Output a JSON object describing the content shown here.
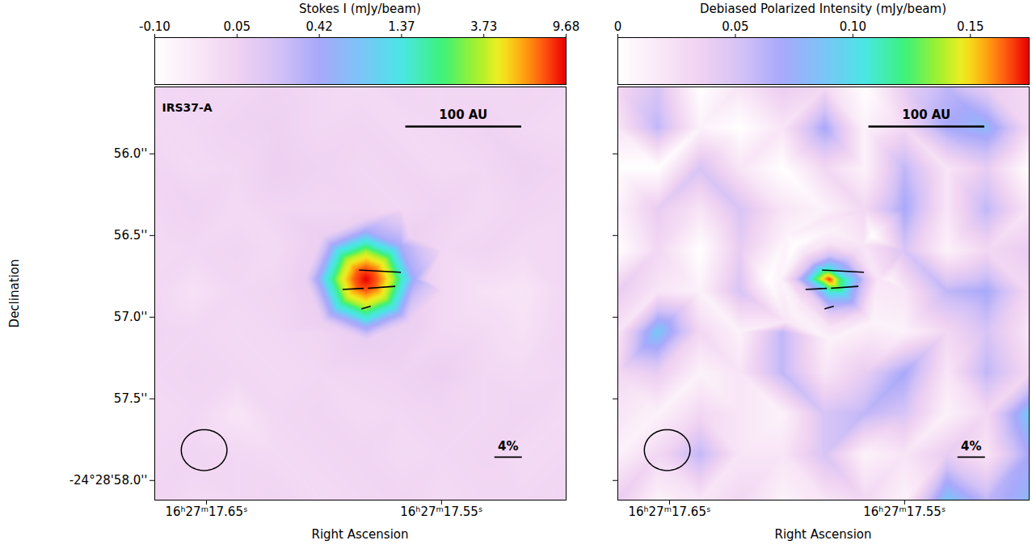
{
  "chart_data": [
    {
      "type": "heatmap",
      "colorbar": {
        "label": "Stokes I (mJy/beam)",
        "range": [
          -0.1,
          9.68
        ],
        "ticks": [
          {
            "value": -0.1,
            "label": "-0.10"
          },
          0.05,
          0.42,
          1.37,
          3.73,
          9.68
        ]
      },
      "annotation": "IRS37-A",
      "x_label": "Right Ascension",
      "y_label": "Declination",
      "xlim": [
        17.672,
        17.497
      ],
      "ylim": [
        55.59,
        58.12
      ],
      "xticks": [
        {
          "value": 17.65,
          "label": "16ʰ27ᵐ17.65ˢ"
        },
        {
          "value": 17.55,
          "label": "16ʰ27ᵐ17.55ˢ"
        }
      ],
      "yticks": [
        {
          "value": 56.0,
          "label": "56.0''"
        },
        {
          "value": 56.5,
          "label": "56.5''"
        },
        {
          "value": 57.0,
          "label": "57.0''"
        },
        {
          "value": 57.5,
          "label": "57.5''"
        },
        {
          "value": 58.0,
          "label": "-24°28'58.0''"
        }
      ],
      "image": {
        "grid_ra": [
          17.672,
          17.655,
          17.637,
          17.62,
          17.602,
          17.584,
          17.567,
          17.55,
          17.532,
          17.515,
          17.497
        ],
        "grid_dec": [
          55.59,
          55.84,
          56.09,
          56.34,
          56.59,
          56.84,
          57.09,
          57.34,
          57.59,
          57.84,
          58.12
        ],
        "grid_values": [
          [
            0.03,
            0.04,
            0.03,
            0.05,
            0.03,
            0.02,
            0.04,
            0.03,
            0.03,
            0.04,
            0.03
          ],
          [
            0.02,
            0.03,
            0.05,
            0.06,
            0.03,
            0.04,
            0.02,
            0.03,
            0.05,
            0.03,
            0.02
          ],
          [
            0.04,
            0.02,
            0.03,
            0.07,
            0.05,
            0.03,
            0.04,
            0.02,
            0.03,
            0.06,
            0.04
          ],
          [
            0.03,
            0.05,
            0.02,
            0.04,
            0.03,
            0.04,
            0.03,
            0.05,
            0.02,
            0.04,
            0.03
          ],
          [
            0.02,
            0.03,
            0.04,
            0.02,
            null,
            null,
            null,
            0.03,
            0.04,
            0.02,
            0.03
          ],
          [
            0.03,
            0.0,
            0.03,
            0.04,
            null,
            null,
            null,
            0.03,
            0.0,
            -0.01,
            0.03
          ],
          [
            0.04,
            0.03,
            0.02,
            0.03,
            0.04,
            null,
            null,
            0.03,
            0.02,
            0.0,
            0.04
          ],
          [
            0.03,
            0.04,
            0.03,
            0.02,
            0.03,
            0.04,
            0.05,
            0.07,
            0.03,
            0.02,
            0.03
          ],
          [
            0.02,
            0.03,
            -0.01,
            0.03,
            0.04,
            0.02,
            0.03,
            0.04,
            0.03,
            0.04,
            0.02
          ],
          [
            0.03,
            0.04,
            0.03,
            0.02,
            0.03,
            0.04,
            0.02,
            0.03,
            0.04,
            0.02,
            0.03
          ],
          [
            0.04,
            0.02,
            0.03,
            0.04,
            0.02,
            0.03,
            0.04,
            0.02,
            0.03,
            0.03,
            0.04
          ]
        ],
        "samples": [
          [
            17.5821,
            56.767,
            9.68
          ],
          [
            17.5873,
            56.767,
            7.9
          ],
          [
            17.5769,
            56.767,
            7.8
          ],
          [
            17.5821,
            56.693,
            7.9
          ],
          [
            17.5821,
            56.841,
            8.0
          ],
          [
            17.5858,
            56.715,
            7.9
          ],
          [
            17.5784,
            56.715,
            7.8
          ],
          [
            17.5858,
            56.819,
            8.0
          ],
          [
            17.5784,
            56.819,
            7.9
          ],
          [
            17.5924,
            56.767,
            4.4
          ],
          [
            17.5718,
            56.767,
            4.3
          ],
          [
            17.5821,
            56.618,
            4.3
          ],
          [
            17.5821,
            56.916,
            4.5
          ],
          [
            17.5894,
            56.662,
            4.4
          ],
          [
            17.5748,
            56.662,
            4.3
          ],
          [
            17.5894,
            56.872,
            4.5
          ],
          [
            17.5748,
            56.872,
            4.4
          ],
          [
            17.5976,
            56.767,
            1.7
          ],
          [
            17.5666,
            56.767,
            1.6
          ],
          [
            17.5821,
            56.544,
            1.6
          ],
          [
            17.5821,
            56.99,
            1.8
          ],
          [
            17.5931,
            56.609,
            1.7
          ],
          [
            17.5711,
            56.609,
            1.6
          ],
          [
            17.5931,
            56.925,
            1.7
          ],
          [
            17.5711,
            56.925,
            1.7
          ],
          [
            17.6028,
            56.767,
            0.43
          ],
          [
            17.5614,
            56.767,
            0.41
          ],
          [
            17.5821,
            56.47,
            0.4
          ],
          [
            17.5821,
            57.064,
            0.45
          ],
          [
            17.5967,
            56.557,
            0.42
          ],
          [
            17.5675,
            56.557,
            0.4
          ],
          [
            17.5967,
            56.977,
            0.44
          ],
          [
            17.5675,
            56.977,
            0.43
          ],
          [
            17.608,
            56.767,
            0.08
          ],
          [
            17.5562,
            56.767,
            0.07
          ],
          [
            17.5821,
            56.396,
            0.07
          ],
          [
            17.5821,
            57.138,
            0.09
          ],
          [
            17.6004,
            56.505,
            0.08
          ],
          [
            17.5638,
            56.505,
            0.07
          ],
          [
            17.6004,
            57.029,
            0.08
          ],
          [
            17.5638,
            57.029,
            0.08
          ]
        ]
      },
      "vectors": [
        {
          "ra": 17.5762,
          "dec": 56.718,
          "percent": 6.1,
          "angle": 87
        },
        {
          "ra": 17.5876,
          "dec": 56.827,
          "percent": 3.1,
          "angle": 93
        },
        {
          "ra": 17.5755,
          "dec": 56.817,
          "percent": 4.0,
          "angle": 94
        },
        {
          "ra": 17.5821,
          "dec": 56.941,
          "percent": 1.4,
          "angle": 105
        }
      ],
      "vector_scale": {
        "value": 4,
        "label": "4%"
      },
      "length_bar": {
        "label": "100 AU",
        "arcsec": 0.71
      },
      "beam": {
        "width": 0.28,
        "height": 0.25
      }
    },
    {
      "type": "heatmap",
      "colorbar": {
        "label": "Debiased Polarized Intensity (mJy/beam)",
        "range": [
          0,
          0.175
        ],
        "ticks": [
          0,
          0.05,
          {
            "value": 0.1,
            "label": "0.10"
          },
          0.15
        ]
      },
      "x_label": "Right Ascension",
      "tick_labels": "x",
      "xlim": [
        17.672,
        17.497
      ],
      "ylim": [
        55.59,
        58.12
      ],
      "xticks": [
        {
          "value": 17.65,
          "label": "16ʰ27ᵐ17.65ˢ"
        },
        {
          "value": 17.55,
          "label": "16ʰ27ᵐ17.55ˢ"
        }
      ],
      "yticks": [
        56.0,
        56.5,
        57.0,
        57.5,
        58.0
      ],
      "image": {
        "grid_ra": [
          17.672,
          17.655,
          17.637,
          17.62,
          17.602,
          17.584,
          17.567,
          17.55,
          17.532,
          17.515,
          17.497
        ],
        "grid_dec": [
          55.59,
          55.84,
          56.09,
          56.34,
          56.59,
          56.84,
          57.09,
          57.34,
          57.59,
          57.84,
          58.12
        ],
        "grid_values": [
          [
            0.03,
            0.05,
            0.0,
            0.02,
            0.04,
            0.03,
            0.0,
            0.04,
            0.06,
            0.04,
            0.03
          ],
          [
            0.02,
            0.06,
            0.01,
            0.0,
            0.02,
            0.07,
            0.01,
            0.03,
            0.07,
            0.08,
            0.03
          ],
          [
            0.0,
            0.0,
            0.05,
            0.02,
            0.0,
            0.03,
            0.01,
            0.06,
            0.02,
            0.04,
            0.0
          ],
          [
            0.01,
            0.04,
            0.02,
            0.05,
            0.02,
            0.01,
            0.03,
            0.07,
            0.02,
            0.06,
            0.02
          ],
          [
            0.0,
            0.03,
            0.0,
            0.04,
            null,
            null,
            null,
            0.05,
            0.01,
            0.03,
            0.04
          ],
          [
            0.04,
            0.02,
            0.01,
            0.05,
            null,
            null,
            null,
            0.02,
            0.06,
            0.07,
            0.03
          ],
          [
            0.02,
            0.09,
            0.03,
            0.01,
            0.06,
            null,
            null,
            0.01,
            0.03,
            0.05,
            0.02
          ],
          [
            0.03,
            0.04,
            0.01,
            0.02,
            0.06,
            0.02,
            0.04,
            0.07,
            0.02,
            0.06,
            0.03
          ],
          [
            0.02,
            0.01,
            0.03,
            0.02,
            0.01,
            0.05,
            0.06,
            0.05,
            0.01,
            0.03,
            0.09
          ],
          [
            0.01,
            0.03,
            0.06,
            0.02,
            0.02,
            0.05,
            0.01,
            0.02,
            0.04,
            0.02,
            0.07
          ],
          [
            0.04,
            0.01,
            0.02,
            0.03,
            0.01,
            0.02,
            0.03,
            0.01,
            0.09,
            0.06,
            0.08
          ]
        ],
        "samples": [
          [
            17.5821,
            56.767,
            0.17
          ],
          [
            17.5873,
            56.767,
            0.13
          ],
          [
            17.5769,
            56.767,
            0.12
          ],
          [
            17.5821,
            56.693,
            0.1
          ],
          [
            17.5821,
            56.841,
            0.11
          ],
          [
            17.5858,
            56.715,
            0.11
          ],
          [
            17.5784,
            56.715,
            0.09
          ],
          [
            17.5858,
            56.819,
            0.09
          ],
          [
            17.5784,
            56.819,
            0.13
          ],
          [
            17.5924,
            56.767,
            0.08
          ],
          [
            17.5718,
            56.767,
            0.09
          ],
          [
            17.5821,
            56.618,
            0.05
          ],
          [
            17.5821,
            56.916,
            0.07
          ],
          [
            17.5894,
            56.662,
            0.05
          ],
          [
            17.5748,
            56.662,
            0.06
          ],
          [
            17.5894,
            56.872,
            0.04
          ],
          [
            17.5748,
            56.872,
            0.09
          ],
          [
            17.5976,
            56.767,
            0.04
          ],
          [
            17.5666,
            56.767,
            0.05
          ],
          [
            17.5821,
            56.544,
            0.02
          ],
          [
            17.5821,
            56.99,
            0.04
          ],
          [
            17.5931,
            56.609,
            0.02
          ],
          [
            17.5711,
            56.609,
            0.03
          ],
          [
            17.5931,
            56.925,
            0.02
          ],
          [
            17.5711,
            56.925,
            0.06
          ],
          [
            17.6028,
            56.767,
            0.01
          ],
          [
            17.5614,
            56.767,
            0.02
          ],
          [
            17.5821,
            56.47,
            0.01
          ],
          [
            17.5821,
            57.064,
            0.02
          ],
          [
            17.5967,
            56.557,
            0.0
          ],
          [
            17.5675,
            56.557,
            0.02
          ],
          [
            17.5967,
            56.977,
            0.01
          ],
          [
            17.5675,
            56.977,
            0.03
          ],
          [
            17.608,
            56.767,
            0.0
          ],
          [
            17.5562,
            56.767,
            0.01
          ],
          [
            17.5821,
            56.396,
            0.02
          ],
          [
            17.5821,
            57.138,
            0.01
          ],
          [
            17.6004,
            56.505,
            0.01
          ],
          [
            17.5638,
            56.505,
            0.0
          ],
          [
            17.6004,
            57.029,
            0.02
          ],
          [
            17.5638,
            57.029,
            0.01
          ]
        ]
      },
      "vectors": [
        {
          "ra": 17.5762,
          "dec": 56.718,
          "percent": 6.1,
          "angle": 87
        },
        {
          "ra": 17.5876,
          "dec": 56.827,
          "percent": 3.1,
          "angle": 93
        },
        {
          "ra": 17.5755,
          "dec": 56.817,
          "percent": 4.0,
          "angle": 94
        },
        {
          "ra": 17.5821,
          "dec": 56.941,
          "percent": 1.4,
          "angle": 105
        }
      ],
      "vector_scale": {
        "value": 4,
        "label": "4%"
      },
      "length_bar": {
        "label": "100 AU",
        "arcsec": 0.71
      },
      "beam": {
        "width": 0.28,
        "height": 0.25
      }
    }
  ]
}
